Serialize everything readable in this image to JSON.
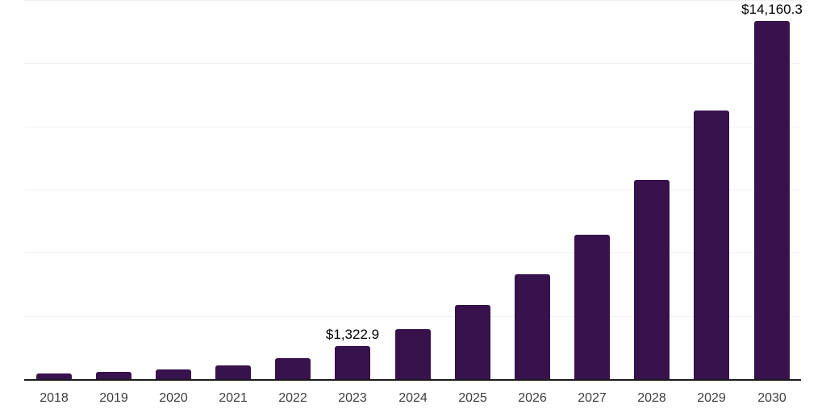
{
  "chart_data": {
    "type": "bar",
    "title": "",
    "xlabel": "",
    "ylabel": "",
    "categories": [
      "2018",
      "2019",
      "2020",
      "2021",
      "2022",
      "2023",
      "2024",
      "2025",
      "2026",
      "2027",
      "2028",
      "2029",
      "2030"
    ],
    "values": [
      220,
      280,
      375,
      550,
      820,
      1322.9,
      1990,
      2945,
      4160,
      5720,
      7870,
      10640,
      14160.3
    ],
    "data_labels": [
      null,
      null,
      null,
      null,
      null,
      "$1,322.9",
      null,
      null,
      null,
      null,
      null,
      null,
      "$14,160.3"
    ],
    "ylim": [
      0,
      15000
    ],
    "gridline_values": [
      2500,
      5000,
      7500,
      10000,
      12500,
      15000
    ],
    "grid": "horizontal",
    "legend_position": "none",
    "y_axis_tick_labels": "hidden",
    "labeled_points": [
      {
        "category": "2023",
        "label": "$1,322.9"
      },
      {
        "category": "2030",
        "label": "$14,160.3"
      }
    ]
  },
  "colors": {
    "background": "#ffffff",
    "bar": "#37124D",
    "gridline": "#f0f0f0",
    "axis_line": "#1a1a1a",
    "tick_label": "#3d3d3d",
    "data_label": "#000000"
  }
}
